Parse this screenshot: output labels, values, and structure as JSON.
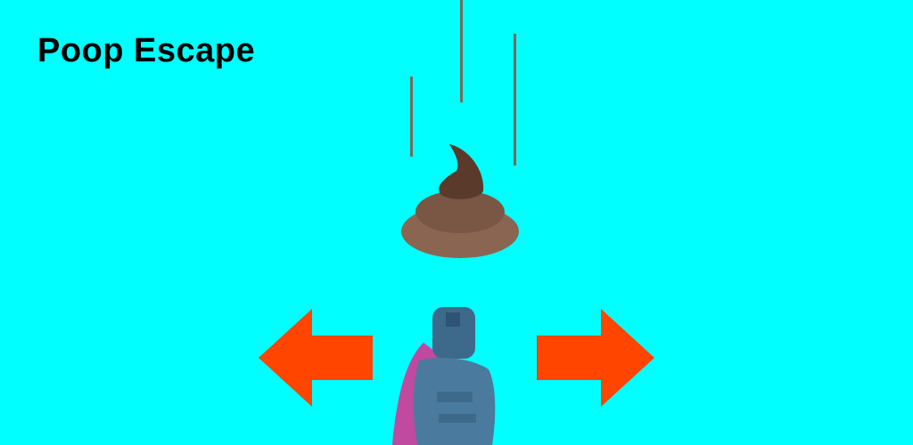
{
  "game": {
    "title": "Poop Escape"
  },
  "colors": {
    "sky": "#00ffff",
    "arrow": "#ff4500",
    "poop_dark": "#5a3a2a",
    "poop_light": "#8a6652",
    "player_body": "#3d6a8a",
    "player_cape": "#c04aa0"
  },
  "icons": {
    "falling_object": "poop-icon",
    "left_control": "left-arrow-icon",
    "right_control": "right-arrow-icon",
    "player": "player-character-icon"
  }
}
